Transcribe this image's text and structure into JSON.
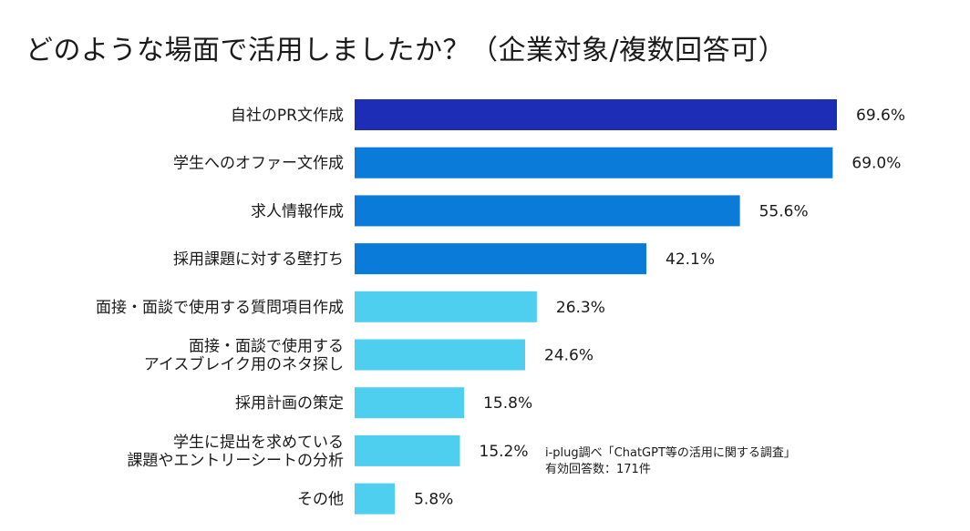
{
  "chart_data": {
    "type": "bar",
    "orientation": "horizontal",
    "title": "どのような場面で活用しましたか？（企業対象/複数回答可）",
    "categories": [
      [
        "自社のPR文作成"
      ],
      [
        "学生へのオファー文作成"
      ],
      [
        "求人情報作成"
      ],
      [
        "採用課題に対する壁打ち"
      ],
      [
        "面接・面談で使用する質問項目作成"
      ],
      [
        "面接・面談で使用する",
        "アイスブレイク用のネタ探し"
      ],
      [
        "採用計画の策定"
      ],
      [
        "学生に提出を求めている",
        "課題やエントリーシートの分析"
      ],
      [
        "その他"
      ]
    ],
    "values": [
      69.6,
      69.0,
      55.6,
      42.1,
      26.3,
      24.6,
      15.8,
      15.2,
      5.8
    ],
    "value_labels": [
      "69.6%",
      "69.0%",
      "55.6%",
      "42.1%",
      "26.3%",
      "24.6%",
      "15.8%",
      "15.2%",
      "5.8%"
    ],
    "bar_colors": [
      "#1e2db5",
      "#0a7bd8",
      "#0a7bd8",
      "#0a7bd8",
      "#4fcfef",
      "#4fcfef",
      "#4fcfef",
      "#4fcfef",
      "#4fcfef"
    ],
    "xlim": [
      0,
      70
    ],
    "grid": false,
    "legend": "none"
  },
  "source_note": {
    "line1": "i-plug調べ「ChatGPT等の活用に関する調査」",
    "line2": "有効回答数：171件"
  }
}
